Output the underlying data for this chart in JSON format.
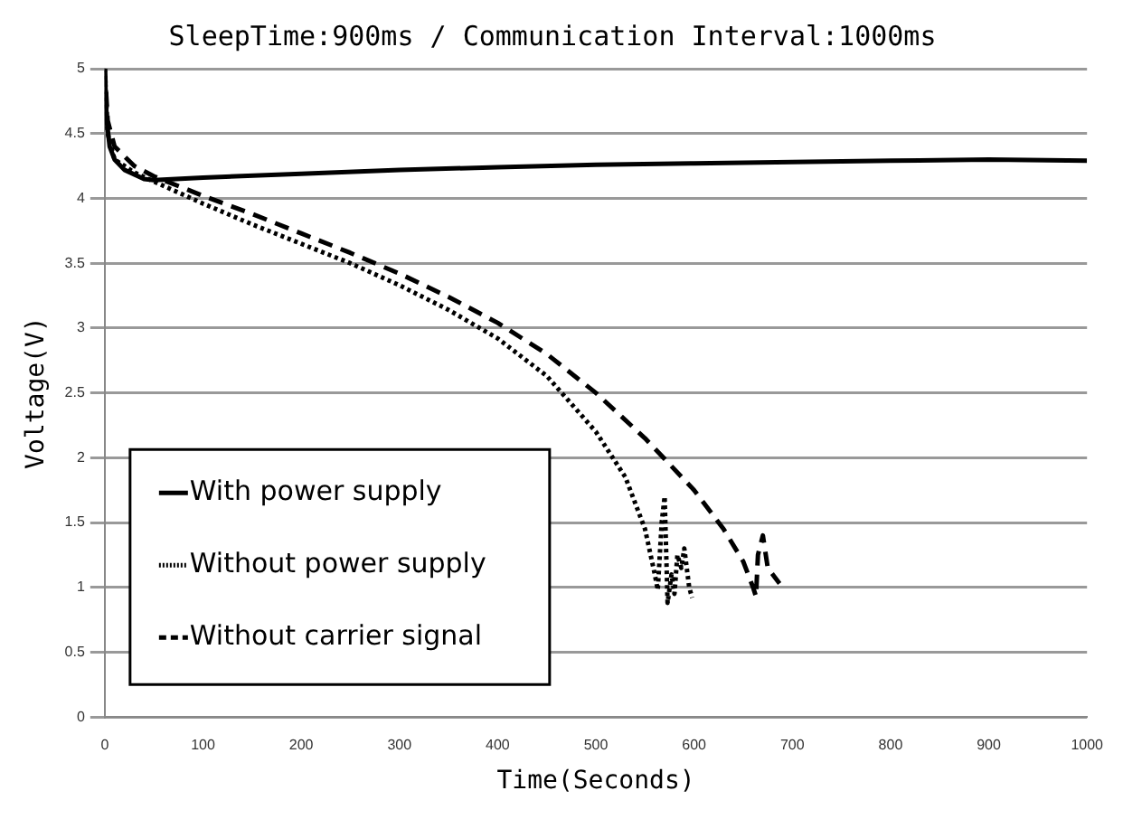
{
  "chart_data": {
    "type": "line",
    "title": "SleepTime:900ms / Communication Interval:1000ms",
    "xlabel": "Time(Seconds)",
    "ylabel": "Voltage(V)",
    "xlim": [
      0,
      1000
    ],
    "xticks": [
      0,
      100,
      200,
      300,
      400,
      500,
      600,
      700,
      800,
      900,
      1000
    ],
    "ylim": [
      0,
      5
    ],
    "yticks": [
      0,
      0.5,
      1,
      1.5,
      2,
      2.5,
      3,
      3.5,
      4,
      4.5,
      5
    ],
    "grid": "y",
    "legend": "bottom left",
    "marker": "none",
    "series": [
      {
        "name": "With power supply",
        "color": "#000000",
        "line_style": "solid",
        "x": [
          0,
          2,
          5,
          10,
          20,
          40,
          50,
          100,
          200,
          300,
          400,
          500,
          600,
          700,
          800,
          900,
          1000
        ],
        "values": [
          5,
          4.6,
          4.4,
          4.3,
          4.22,
          4.15,
          4.14,
          4.16,
          4.19,
          4.22,
          4.24,
          4.26,
          4.27,
          4.28,
          4.29,
          4.3,
          4.29
        ]
      },
      {
        "name": "Without power supply",
        "color": "#000000",
        "line_style": "dotted",
        "x": [
          0,
          3,
          10,
          30,
          50,
          100,
          150,
          200,
          250,
          300,
          350,
          400,
          450,
          500,
          530,
          550,
          560,
          563,
          567,
          570,
          573,
          577,
          580,
          583,
          587,
          590,
          595,
          598
        ],
        "values": [
          5,
          4.5,
          4.3,
          4.2,
          4.13,
          3.96,
          3.8,
          3.65,
          3.5,
          3.33,
          3.14,
          2.92,
          2.63,
          2.2,
          1.85,
          1.45,
          1.1,
          0.98,
          1.5,
          1.7,
          0.88,
          1.1,
          0.95,
          1.25,
          1.15,
          1.3,
          1.0,
          0.92
        ]
      },
      {
        "name": "Without carrier signal",
        "color": "#000000",
        "line_style": "dashed",
        "x": [
          0,
          3,
          10,
          30,
          50,
          100,
          150,
          200,
          250,
          300,
          350,
          400,
          450,
          500,
          550,
          600,
          630,
          650,
          660,
          663,
          665,
          670,
          675,
          680,
          687
        ],
        "values": [
          5,
          4.6,
          4.4,
          4.25,
          4.17,
          4.02,
          3.88,
          3.73,
          3.58,
          3.42,
          3.24,
          3.04,
          2.8,
          2.5,
          2.15,
          1.75,
          1.45,
          1.2,
          1.0,
          0.93,
          1.25,
          1.4,
          1.15,
          1.1,
          1.03
        ]
      }
    ]
  }
}
